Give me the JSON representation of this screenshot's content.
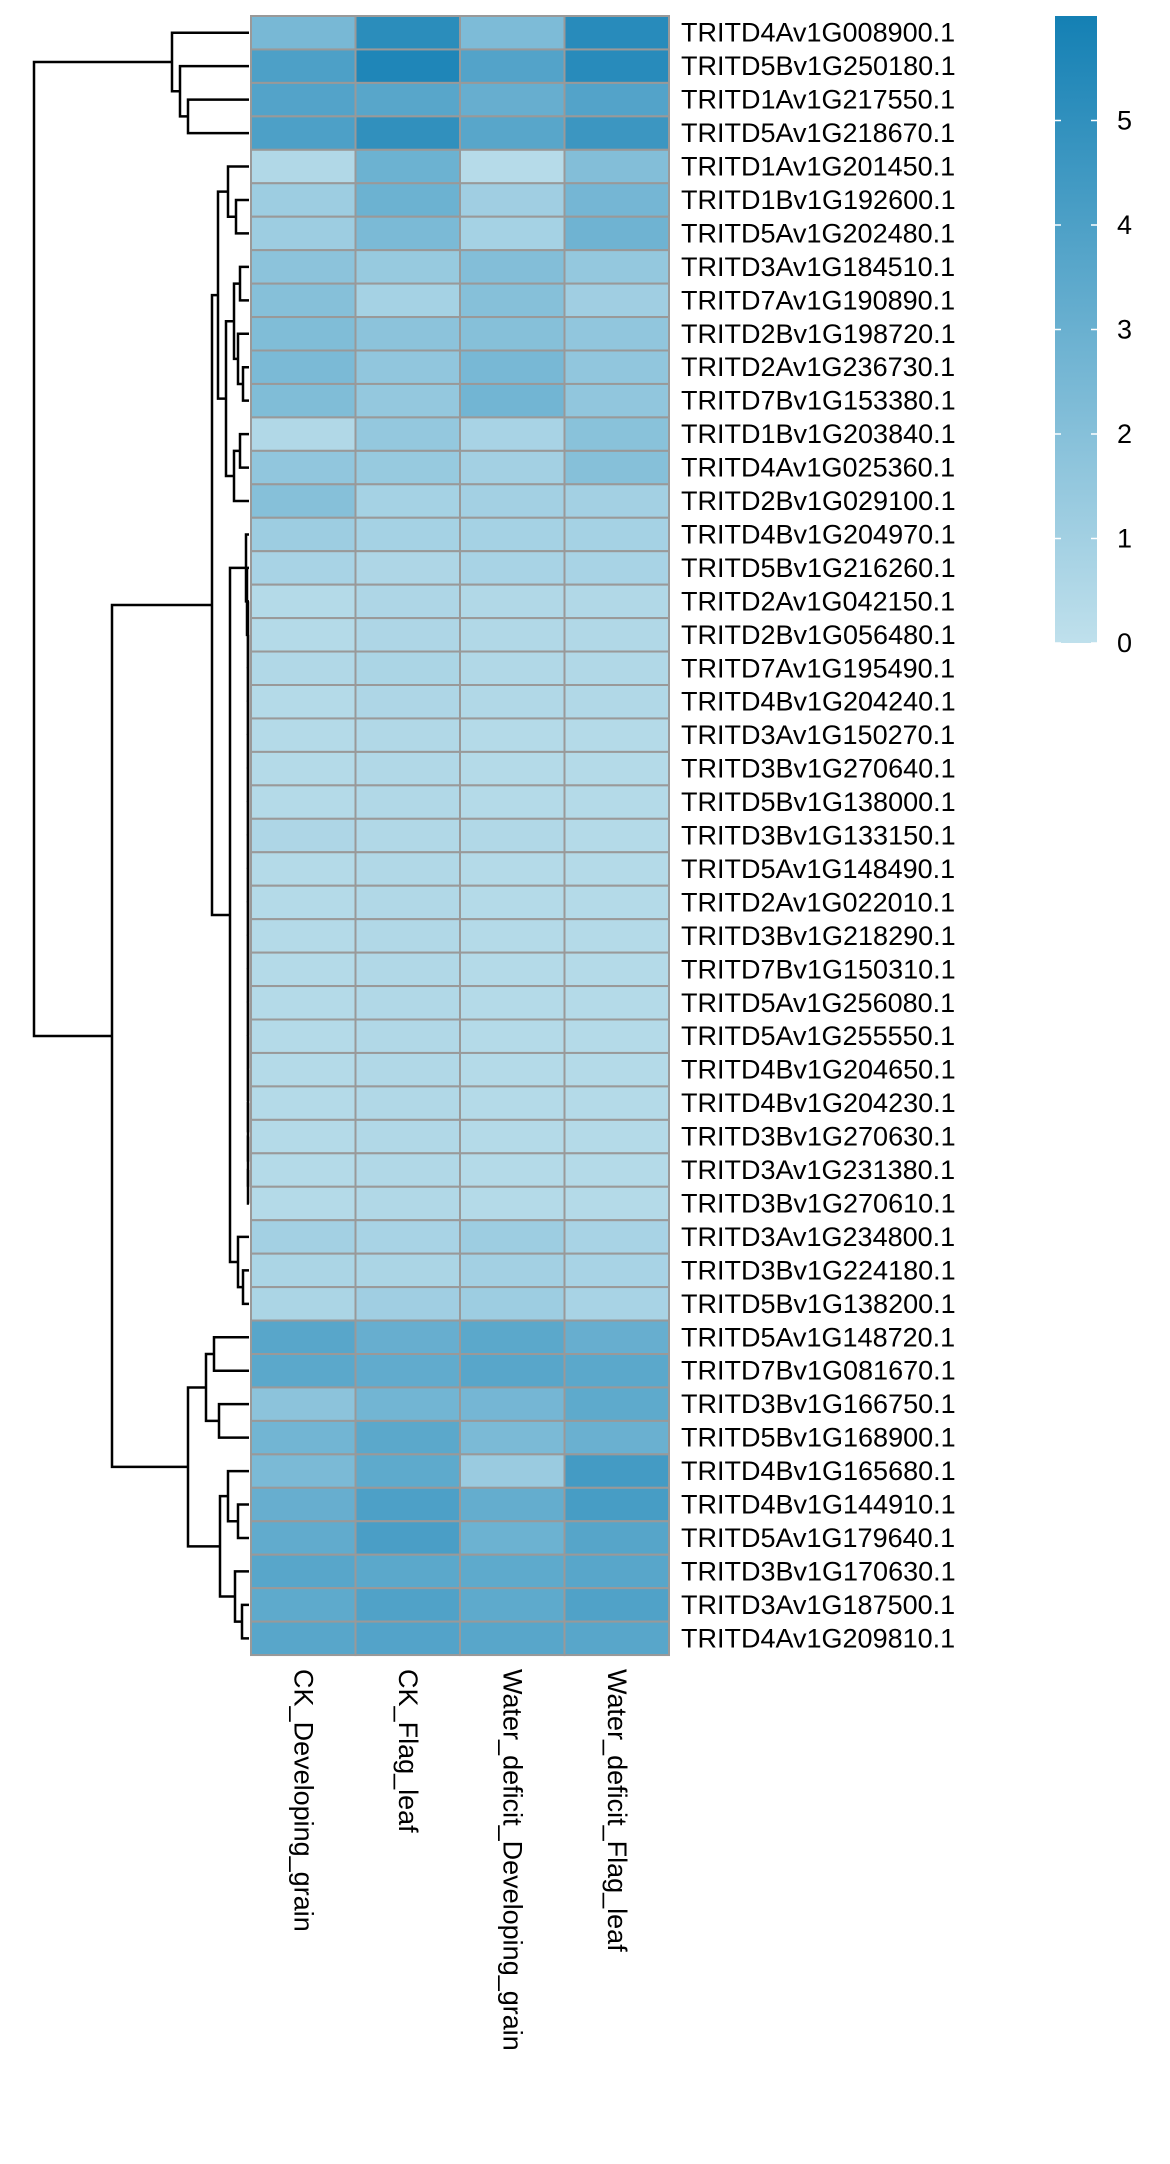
{
  "chart_data": {
    "type": "heatmap",
    "columns": [
      "CK_Developing_grain",
      "CK_Flag_leaf",
      "Water_deficit_Developing_grain",
      "Water_deficit_Flag_leaf"
    ],
    "rows": [
      "TRITD4Av1G008900.1",
      "TRITD5Bv1G250180.1",
      "TRITD1Av1G217550.1",
      "TRITD5Av1G218670.1",
      "TRITD1Av1G201450.1",
      "TRITD1Bv1G192600.1",
      "TRITD5Av1G202480.1",
      "TRITD3Av1G184510.1",
      "TRITD7Av1G190890.1",
      "TRITD2Bv1G198720.1",
      "TRITD2Av1G236730.1",
      "TRITD7Bv1G153380.1",
      "TRITD1Bv1G203840.1",
      "TRITD4Av1G025360.1",
      "TRITD2Bv1G029100.1",
      "TRITD4Bv1G204970.1",
      "TRITD5Bv1G216260.1",
      "TRITD2Av1G042150.1",
      "TRITD2Bv1G056480.1",
      "TRITD7Av1G195490.1",
      "TRITD4Bv1G204240.1",
      "TRITD3Av1G150270.1",
      "TRITD3Bv1G270640.1",
      "TRITD5Bv1G138000.1",
      "TRITD3Bv1G133150.1",
      "TRITD5Av1G148490.1",
      "TRITD2Av1G022010.1",
      "TRITD3Bv1G218290.1",
      "TRITD7Bv1G150310.1",
      "TRITD5Av1G256080.1",
      "TRITD5Av1G255550.1",
      "TRITD4Bv1G204650.1",
      "TRITD4Bv1G204230.1",
      "TRITD3Bv1G270630.1",
      "TRITD3Av1G231380.1",
      "TRITD3Bv1G270610.1",
      "TRITD3Av1G234800.1",
      "TRITD3Bv1G224180.1",
      "TRITD5Bv1G138200.1",
      "TRITD5Av1G148720.1",
      "TRITD7Bv1G081670.1",
      "TRITD3Bv1G166750.1",
      "TRITD5Bv1G168900.1",
      "TRITD4Bv1G165680.1",
      "TRITD4Bv1G144910.1",
      "TRITD5Av1G179640.1",
      "TRITD3Bv1G170630.1",
      "TRITD3Av1G187500.1",
      "TRITD4Av1G209810.1"
    ],
    "values": [
      [
        2.5,
        5.2,
        2.3,
        5.3
      ],
      [
        4.0,
        5.6,
        3.8,
        5.3
      ],
      [
        3.8,
        3.6,
        3.1,
        3.8
      ],
      [
        4.0,
        5.0,
        3.6,
        4.6
      ],
      [
        0.5,
        2.9,
        0.3,
        2.1
      ],
      [
        1.2,
        2.9,
        1.1,
        2.6
      ],
      [
        1.2,
        2.4,
        0.9,
        2.8
      ],
      [
        1.8,
        1.4,
        2.1,
        1.5
      ],
      [
        2.0,
        0.9,
        2.0,
        1.1
      ],
      [
        2.2,
        1.8,
        2.0,
        1.6
      ],
      [
        2.4,
        1.6,
        2.5,
        1.6
      ],
      [
        2.2,
        1.5,
        2.7,
        1.6
      ],
      [
        0.5,
        1.5,
        0.8,
        1.9
      ],
      [
        1.6,
        1.4,
        1.0,
        2.0
      ],
      [
        2.0,
        0.9,
        1.0,
        1.0
      ],
      [
        1.2,
        0.9,
        0.9,
        0.9
      ],
      [
        0.8,
        0.6,
        0.8,
        0.8
      ],
      [
        0.4,
        0.6,
        0.5,
        0.5
      ],
      [
        0.4,
        0.6,
        0.5,
        0.5
      ],
      [
        0.5,
        0.7,
        0.5,
        0.5
      ],
      [
        0.4,
        0.6,
        0.5,
        0.5
      ],
      [
        0.4,
        0.5,
        0.4,
        0.4
      ],
      [
        0.4,
        0.5,
        0.4,
        0.4
      ],
      [
        0.4,
        0.5,
        0.4,
        0.4
      ],
      [
        0.6,
        0.5,
        0.5,
        0.4
      ],
      [
        0.4,
        0.5,
        0.4,
        0.4
      ],
      [
        0.4,
        0.5,
        0.4,
        0.4
      ],
      [
        0.4,
        0.5,
        0.4,
        0.4
      ],
      [
        0.4,
        0.5,
        0.4,
        0.4
      ],
      [
        0.4,
        0.5,
        0.4,
        0.4
      ],
      [
        0.4,
        0.5,
        0.4,
        0.4
      ],
      [
        0.4,
        0.5,
        0.4,
        0.4
      ],
      [
        0.4,
        0.5,
        0.4,
        0.4
      ],
      [
        0.4,
        0.5,
        0.4,
        0.4
      ],
      [
        0.4,
        0.5,
        0.4,
        0.4
      ],
      [
        0.4,
        0.5,
        0.4,
        0.4
      ],
      [
        1.0,
        0.8,
        1.2,
        0.8
      ],
      [
        0.7,
        0.7,
        1.0,
        0.8
      ],
      [
        0.7,
        1.1,
        1.2,
        0.8
      ],
      [
        3.6,
        3.1,
        3.5,
        3.1
      ],
      [
        3.5,
        3.3,
        3.6,
        3.5
      ],
      [
        1.8,
        2.7,
        2.6,
        3.4
      ],
      [
        2.7,
        3.5,
        2.4,
        3.0
      ],
      [
        2.4,
        3.4,
        1.3,
        4.3
      ],
      [
        3.1,
        4.0,
        3.2,
        4.2
      ],
      [
        3.3,
        4.1,
        2.9,
        3.7
      ],
      [
        3.6,
        3.5,
        3.4,
        3.6
      ],
      [
        3.4,
        3.9,
        3.4,
        3.9
      ],
      [
        3.6,
        3.8,
        3.6,
        3.6
      ]
    ],
    "legend": {
      "ticks": [
        "0",
        "1",
        "2",
        "3",
        "4",
        "5"
      ],
      "range": [
        0,
        6
      ],
      "color_low": "#bfe0ec",
      "color_high": "#1480b4"
    },
    "cell_border_color": "#999999",
    "dendrogram": "rows",
    "legend_position": "top-right"
  }
}
